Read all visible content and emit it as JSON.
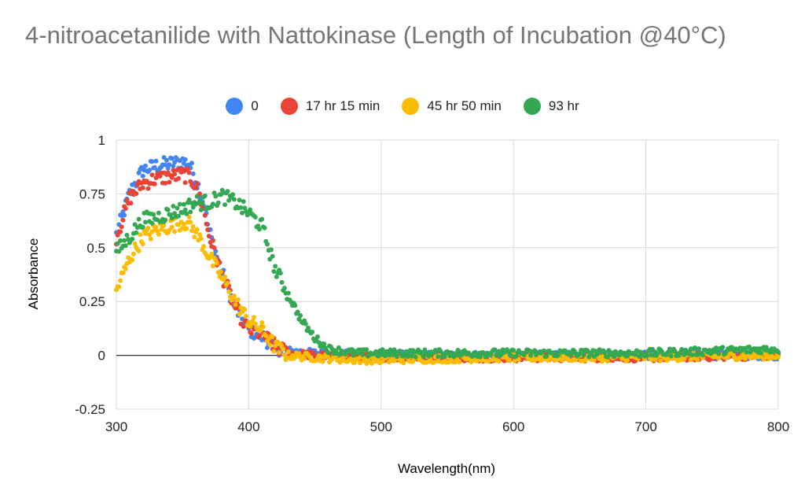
{
  "title": "4-nitroacetanilide with Nattokinase (Length of Incubation @40°C)",
  "chart_data": {
    "type": "scatter",
    "title": "4-nitroacetanilide with Nattokinase (Length of Incubation @40°C)",
    "xlabel": "Wavelength(nm)",
    "ylabel": "Absorbance",
    "xlim": [
      300,
      800
    ],
    "ylim": [
      -0.25,
      1
    ],
    "xticks": [
      "300",
      "400",
      "500",
      "600",
      "700",
      "800"
    ],
    "yticks": [
      "-0.25",
      "0",
      "0.25",
      "0.5",
      "0.75",
      "1"
    ],
    "grid": true,
    "legend_position": "top",
    "series": [
      {
        "name": "0",
        "color": "#4285F4",
        "points": [
          [
            300,
            0.56
          ],
          [
            310,
            0.75
          ],
          [
            320,
            0.86
          ],
          [
            330,
            0.88
          ],
          [
            340,
            0.89
          ],
          [
            350,
            0.9
          ],
          [
            355,
            0.89
          ],
          [
            360,
            0.82
          ],
          [
            365,
            0.73
          ],
          [
            370,
            0.58
          ],
          [
            380,
            0.38
          ],
          [
            390,
            0.22
          ],
          [
            400,
            0.12
          ],
          [
            410,
            0.09
          ],
          [
            420,
            0.04
          ],
          [
            430,
            0.02
          ],
          [
            450,
            0.01
          ],
          [
            500,
            0.0
          ],
          [
            600,
            0.0
          ],
          [
            700,
            0.0
          ],
          [
            800,
            0.0
          ]
        ]
      },
      {
        "name": "17 hr 15 min",
        "color": "#EA4335",
        "points": [
          [
            300,
            0.55
          ],
          [
            310,
            0.73
          ],
          [
            320,
            0.8
          ],
          [
            330,
            0.82
          ],
          [
            340,
            0.83
          ],
          [
            350,
            0.84
          ],
          [
            355,
            0.83
          ],
          [
            360,
            0.79
          ],
          [
            365,
            0.7
          ],
          [
            370,
            0.56
          ],
          [
            380,
            0.37
          ],
          [
            390,
            0.22
          ],
          [
            400,
            0.12
          ],
          [
            410,
            0.1
          ],
          [
            420,
            0.04
          ],
          [
            430,
            0.01
          ],
          [
            450,
            0.0
          ],
          [
            500,
            -0.01
          ],
          [
            600,
            -0.01
          ],
          [
            700,
            -0.01
          ],
          [
            800,
            0.0
          ]
        ]
      },
      {
        "name": "45 hr 50 min",
        "color": "#FBBC04",
        "points": [
          [
            300,
            0.3
          ],
          [
            310,
            0.45
          ],
          [
            320,
            0.55
          ],
          [
            330,
            0.58
          ],
          [
            340,
            0.6
          ],
          [
            350,
            0.62
          ],
          [
            355,
            0.61
          ],
          [
            360,
            0.57
          ],
          [
            365,
            0.52
          ],
          [
            370,
            0.46
          ],
          [
            380,
            0.36
          ],
          [
            390,
            0.25
          ],
          [
            400,
            0.16
          ],
          [
            410,
            0.12
          ],
          [
            420,
            0.04
          ],
          [
            430,
            0.0
          ],
          [
            450,
            -0.01
          ],
          [
            480,
            -0.02
          ],
          [
            500,
            -0.02
          ],
          [
            600,
            -0.01
          ],
          [
            700,
            -0.01
          ],
          [
            800,
            0.0
          ]
        ]
      },
      {
        "name": "93 hr",
        "color": "#34A853",
        "points": [
          [
            300,
            0.48
          ],
          [
            310,
            0.55
          ],
          [
            320,
            0.63
          ],
          [
            330,
            0.64
          ],
          [
            340,
            0.66
          ],
          [
            350,
            0.68
          ],
          [
            360,
            0.71
          ],
          [
            370,
            0.71
          ],
          [
            380,
            0.74
          ],
          [
            390,
            0.71
          ],
          [
            400,
            0.66
          ],
          [
            410,
            0.6
          ],
          [
            415,
            0.5
          ],
          [
            420,
            0.4
          ],
          [
            430,
            0.28
          ],
          [
            440,
            0.16
          ],
          [
            450,
            0.08
          ],
          [
            460,
            0.03
          ],
          [
            480,
            0.01
          ],
          [
            500,
            0.01
          ],
          [
            600,
            0.01
          ],
          [
            700,
            0.01
          ],
          [
            800,
            0.03
          ]
        ]
      }
    ]
  }
}
